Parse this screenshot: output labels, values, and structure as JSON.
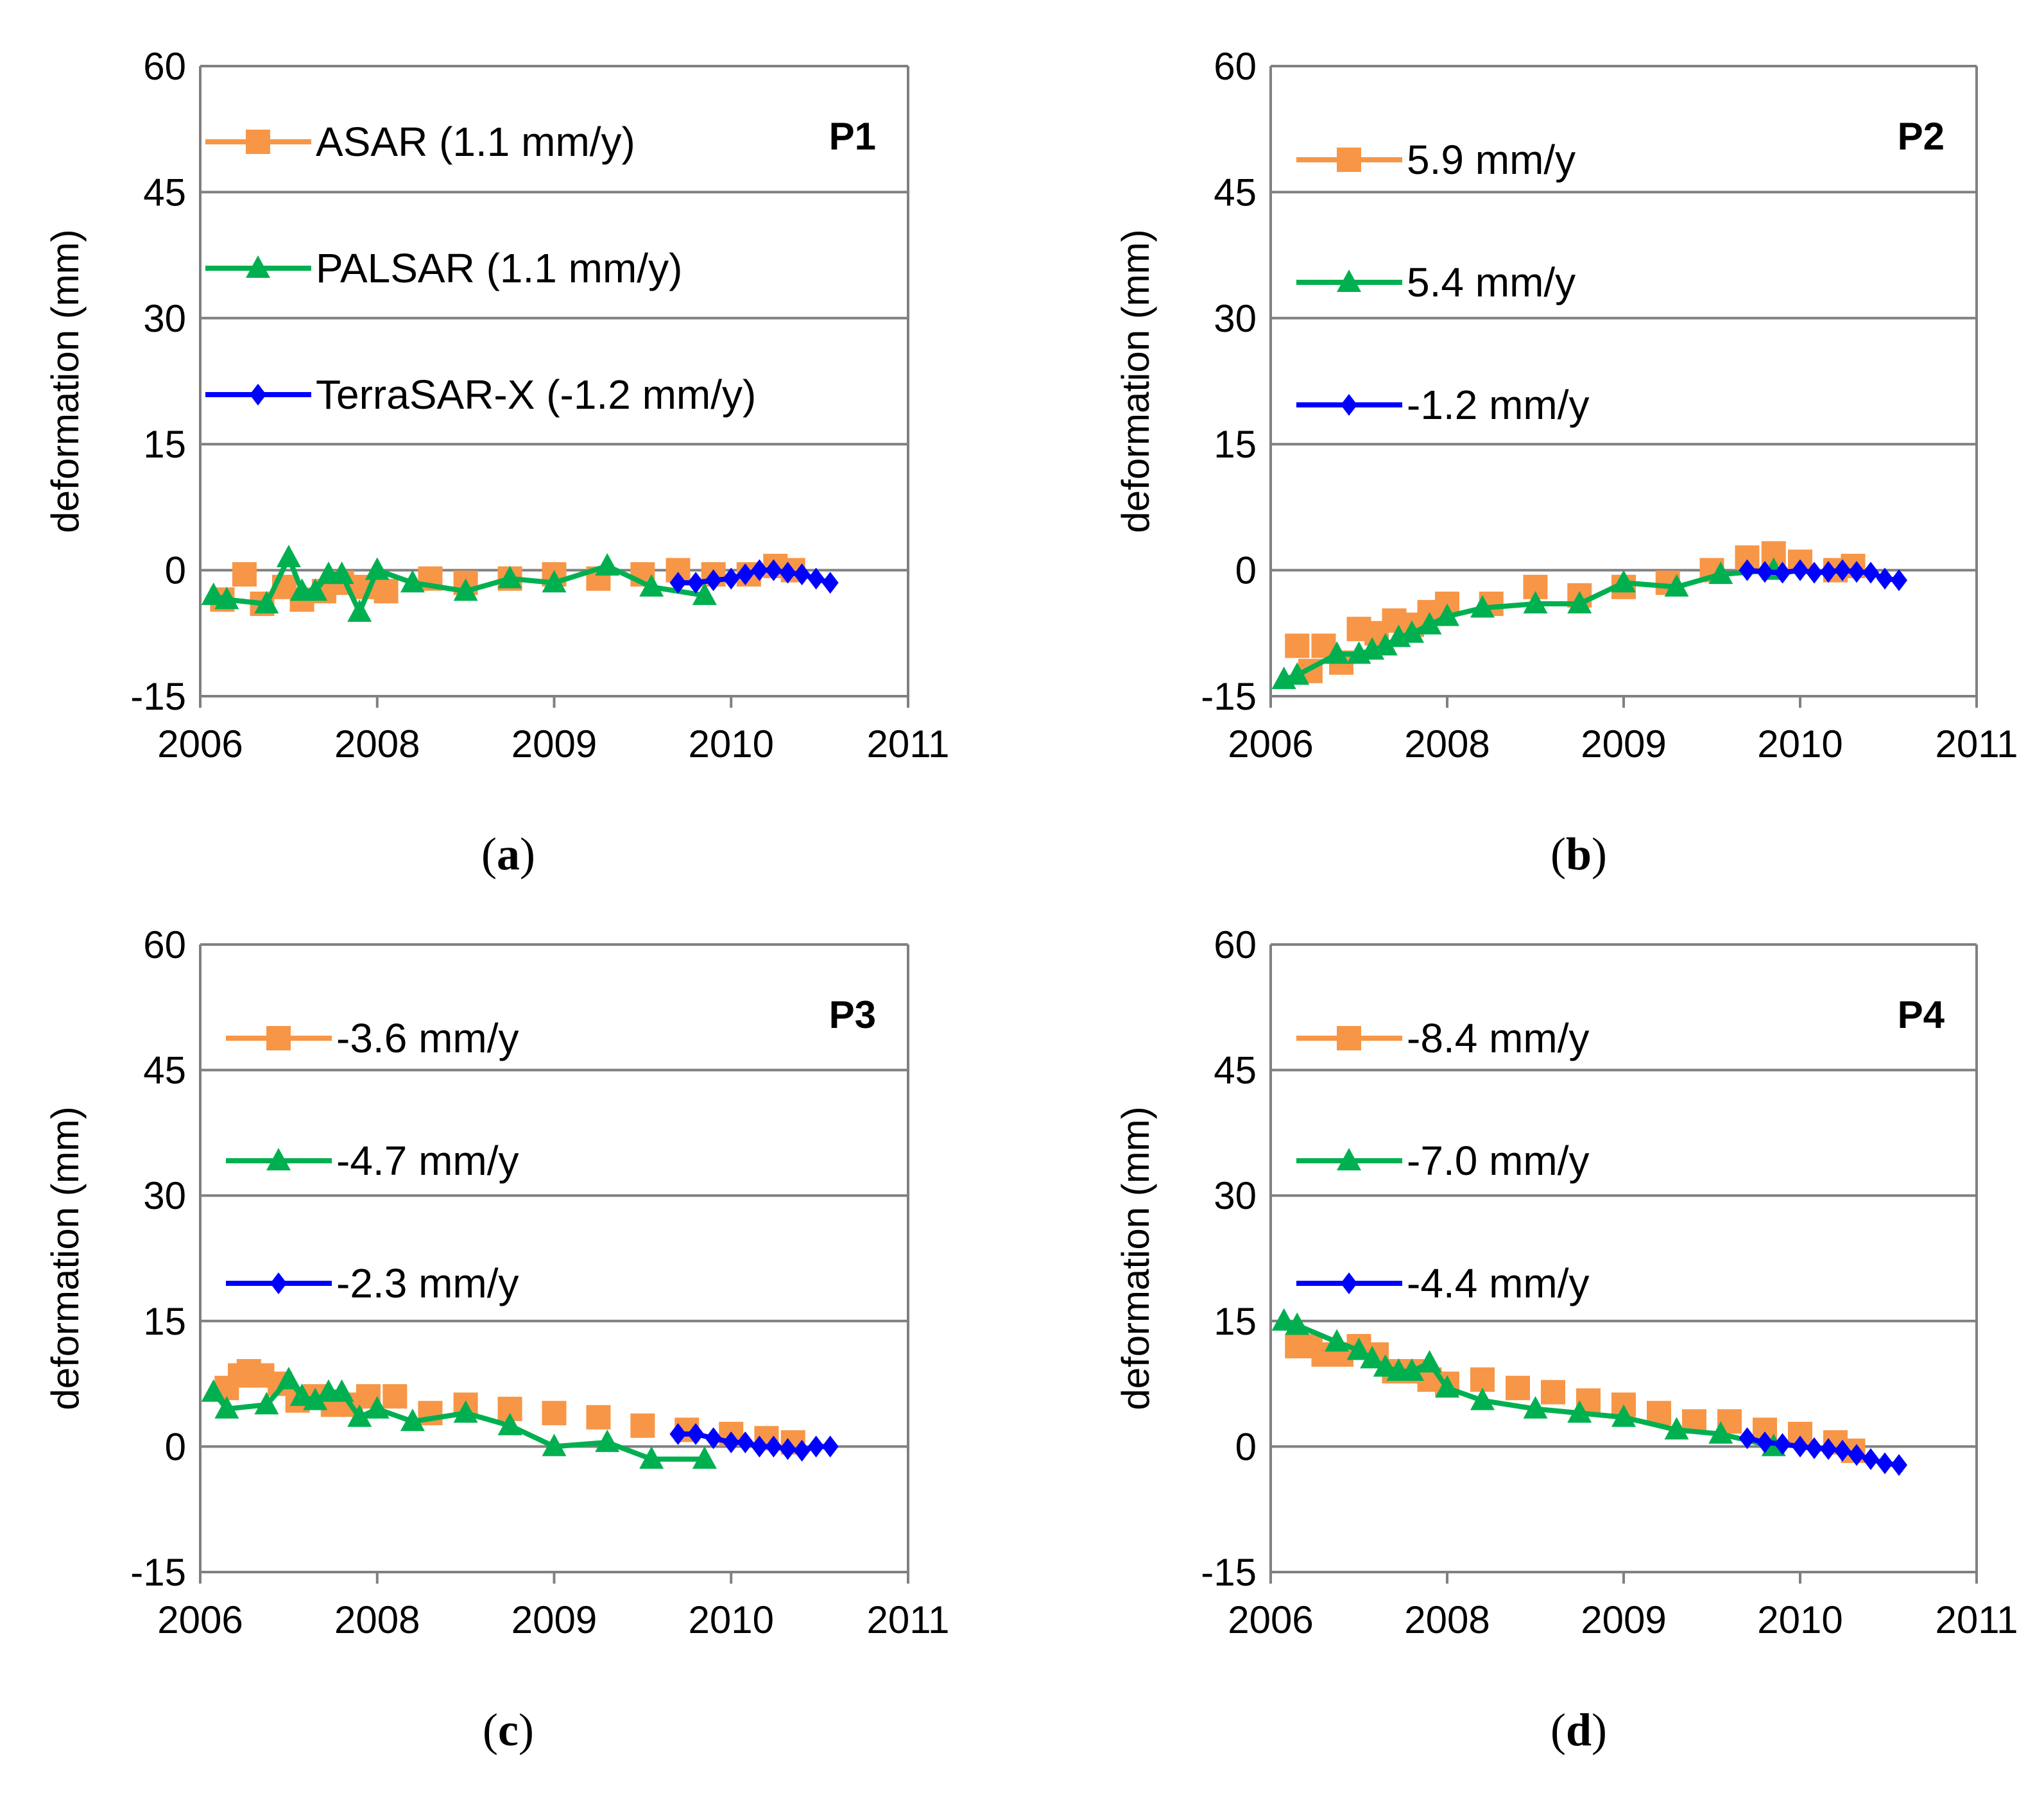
{
  "chart_data": [
    {
      "type": "line",
      "panel": "(a)",
      "caption_letter": "a",
      "point_label": "P1",
      "ylabel": "deformation (mm)",
      "xlabel": "",
      "ylim": [
        -15,
        60
      ],
      "yticks": [
        -15,
        0,
        15,
        30,
        45,
        60
      ],
      "xlim": [
        2006,
        2011
      ],
      "xticks": [
        "2006",
        "2008",
        "2009",
        "2010",
        "2011"
      ],
      "grid": true,
      "legend_position": "top-left",
      "series": [
        {
          "name": "ASAR (1.1 mm/y)",
          "color": "#F79646",
          "marker": "square",
          "x": [
            2006.25,
            2006.5,
            2006.7,
            2006.95,
            2007.15,
            2007.4,
            2007.6,
            2007.85,
            2008.05,
            2008.3,
            2008.5,
            2008.75,
            2009.0,
            2009.25,
            2009.5,
            2009.7,
            2009.9,
            2010.1,
            2010.25,
            2010.35
          ],
          "values": [
            -3.5,
            -0.5,
            -4,
            -2,
            -3.5,
            -2.5,
            -1.5,
            -2,
            -2.5,
            -1,
            -1.5,
            -1,
            -0.5,
            -1,
            -0.5,
            0,
            -0.5,
            -0.5,
            0.5,
            0
          ]
        },
        {
          "name": "PALSAR (1.1 mm/y)",
          "color": "#00B050",
          "marker": "triangle",
          "x": [
            2006.15,
            2006.3,
            2006.75,
            2007.0,
            2007.15,
            2007.3,
            2007.45,
            2007.6,
            2007.8,
            2008.0,
            2008.2,
            2008.5,
            2008.75,
            2009.0,
            2009.3,
            2009.55,
            2009.85
          ],
          "values": [
            -3,
            -3.5,
            -4,
            1.5,
            -2.5,
            -2.5,
            -0.5,
            -0.5,
            -5,
            0,
            -1.5,
            -2.5,
            -1,
            -1.5,
            0.5,
            -2,
            -3
          ]
        },
        {
          "name": "TerraSAR-X (-1.2 mm/y)",
          "color": "#0000FF",
          "marker": "diamond",
          "x": [
            2009.7,
            2009.8,
            2009.9,
            2010.0,
            2010.08,
            2010.16,
            2010.24,
            2010.32,
            2010.4,
            2010.48,
            2010.56
          ],
          "values": [
            -1.5,
            -1.5,
            -1.2,
            -1.0,
            -0.5,
            0,
            0,
            -0.3,
            -0.5,
            -1.0,
            -1.5
          ]
        }
      ]
    },
    {
      "type": "line",
      "panel": "(b)",
      "caption_letter": "b",
      "point_label": "P2",
      "ylabel": "deformation (mm)",
      "xlabel": "",
      "ylim": [
        -15,
        60
      ],
      "yticks": [
        -15,
        0,
        15,
        30,
        45,
        60
      ],
      "xlim": [
        2006,
        2011
      ],
      "xticks": [
        "2006",
        "2008",
        "2009",
        "2010",
        "2011"
      ],
      "grid": true,
      "legend_position": "top-left",
      "series": [
        {
          "name": "5.9 mm/y",
          "color": "#F79646",
          "marker": "square",
          "x": [
            2006.3,
            2006.45,
            2006.6,
            2006.8,
            2007.0,
            2007.2,
            2007.4,
            2007.6,
            2007.8,
            2008.0,
            2008.25,
            2008.5,
            2008.75,
            2009.0,
            2009.25,
            2009.5,
            2009.7,
            2009.85,
            2010.0,
            2010.2,
            2010.3
          ],
          "values": [
            -9,
            -12,
            -9,
            -11,
            -7,
            -7.5,
            -6,
            -6.5,
            -5,
            -4,
            -4,
            -2,
            -3,
            -2,
            -1.5,
            0,
            1.5,
            2,
            1,
            0,
            0.5
          ]
        },
        {
          "name": "5.4 mm/y",
          "color": "#00B050",
          "marker": "triangle",
          "x": [
            2006.15,
            2006.3,
            2006.75,
            2007.0,
            2007.15,
            2007.3,
            2007.45,
            2007.6,
            2007.8,
            2008.0,
            2008.2,
            2008.5,
            2008.75,
            2009.0,
            2009.3,
            2009.55,
            2009.85
          ],
          "values": [
            -13,
            -12.5,
            -10,
            -10,
            -9.5,
            -9,
            -8,
            -7.5,
            -6.5,
            -5.5,
            -4.5,
            -4,
            -4,
            -1.5,
            -2,
            -0.5,
            0
          ]
        },
        {
          "name": "-1.2 mm/y",
          "color": "#0000FF",
          "marker": "diamond",
          "x": [
            2009.7,
            2009.8,
            2009.9,
            2010.0,
            2010.08,
            2010.16,
            2010.24,
            2010.32,
            2010.4,
            2010.48,
            2010.56
          ],
          "values": [
            0,
            -0.2,
            -0.3,
            0,
            -0.3,
            -0.2,
            0,
            -0.2,
            -0.3,
            -1.0,
            -1.2
          ]
        }
      ]
    },
    {
      "type": "line",
      "panel": "(c)",
      "caption_letter": "c",
      "point_label": "P3",
      "ylabel": "deformation (mm)",
      "xlabel": "",
      "ylim": [
        -15,
        60
      ],
      "yticks": [
        -15,
        0,
        15,
        30,
        45,
        60
      ],
      "xlim": [
        2006,
        2011
      ],
      "xticks": [
        "2006",
        "2008",
        "2009",
        "2010",
        "2011"
      ],
      "grid": true,
      "legend_position": "top-left",
      "series": [
        {
          "name": "-3.6 mm/y",
          "color": "#F79646",
          "marker": "square",
          "x": [
            2006.3,
            2006.45,
            2006.55,
            2006.7,
            2006.9,
            2007.1,
            2007.3,
            2007.5,
            2007.7,
            2007.9,
            2008.1,
            2008.3,
            2008.5,
            2008.75,
            2009.0,
            2009.25,
            2009.5,
            2009.75,
            2010.0,
            2010.2,
            2010.35
          ],
          "values": [
            7,
            8.5,
            9,
            8.5,
            7.5,
            5.5,
            6,
            5,
            5,
            6,
            6,
            4,
            5,
            4.5,
            4,
            3.5,
            2.5,
            2,
            1.5,
            1,
            0.5
          ]
        },
        {
          "name": "-4.7 mm/y",
          "color": "#00B050",
          "marker": "triangle",
          "x": [
            2006.15,
            2006.3,
            2006.75,
            2007.0,
            2007.15,
            2007.3,
            2007.45,
            2007.6,
            2007.8,
            2008.0,
            2008.2,
            2008.5,
            2008.75,
            2009.0,
            2009.3,
            2009.55,
            2009.85
          ],
          "values": [
            6.5,
            4.5,
            5,
            8,
            6,
            5.5,
            6.5,
            6.5,
            3.5,
            4.5,
            3,
            4,
            2.5,
            0,
            0.5,
            -1.5,
            -1.5
          ]
        },
        {
          "name": "-2.3 mm/y",
          "color": "#0000FF",
          "marker": "diamond",
          "x": [
            2009.7,
            2009.8,
            2009.9,
            2010.0,
            2010.08,
            2010.16,
            2010.24,
            2010.32,
            2010.4,
            2010.48,
            2010.56
          ],
          "values": [
            1.5,
            1.5,
            1.0,
            0.5,
            0.5,
            0,
            0,
            -0.3,
            -0.5,
            0,
            0
          ]
        }
      ]
    },
    {
      "type": "line",
      "panel": "(d)",
      "caption_letter": "d",
      "point_label": "P4",
      "ylabel": "deformation (mm)",
      "xlabel": "",
      "ylim": [
        -15,
        60
      ],
      "yticks": [
        -15,
        0,
        15,
        30,
        45,
        60
      ],
      "xlim": [
        2006,
        2011
      ],
      "xticks": [
        "2006",
        "2008",
        "2009",
        "2010",
        "2011"
      ],
      "grid": true,
      "legend_position": "top-left",
      "series": [
        {
          "name": "-8.4 mm/y",
          "color": "#F79646",
          "marker": "square",
          "x": [
            2006.3,
            2006.45,
            2006.6,
            2006.8,
            2007.0,
            2007.2,
            2007.4,
            2007.6,
            2007.8,
            2008.0,
            2008.2,
            2008.4,
            2008.6,
            2008.8,
            2009.0,
            2009.2,
            2009.4,
            2009.6,
            2009.8,
            2010.0,
            2010.2,
            2010.3
          ],
          "values": [
            12,
            12,
            11,
            11,
            12,
            11,
            9,
            9,
            8,
            7.5,
            8,
            7,
            6.5,
            5.5,
            5,
            4,
            3,
            3,
            2,
            1.5,
            0.5,
            -0.5
          ]
        },
        {
          "name": "-7.0 mm/y",
          "color": "#00B050",
          "marker": "triangle",
          "x": [
            2006.15,
            2006.3,
            2006.75,
            2007.0,
            2007.15,
            2007.3,
            2007.45,
            2007.6,
            2007.8,
            2008.0,
            2008.2,
            2008.5,
            2008.75,
            2009.0,
            2009.3,
            2009.55,
            2009.85
          ],
          "values": [
            15,
            14.5,
            12.5,
            11.5,
            10.5,
            9.5,
            9,
            9,
            10,
            7,
            5.5,
            4.5,
            4,
            3.5,
            2,
            1.5,
            0
          ]
        },
        {
          "name": "-4.4 mm/y",
          "color": "#0000FF",
          "marker": "diamond",
          "x": [
            2009.7,
            2009.8,
            2009.9,
            2010.0,
            2010.08,
            2010.16,
            2010.24,
            2010.32,
            2010.4,
            2010.48,
            2010.56
          ],
          "values": [
            1.0,
            0.5,
            0.3,
            0,
            -0.2,
            -0.3,
            -0.5,
            -1.0,
            -1.5,
            -2.0,
            -2.2
          ]
        }
      ]
    }
  ]
}
